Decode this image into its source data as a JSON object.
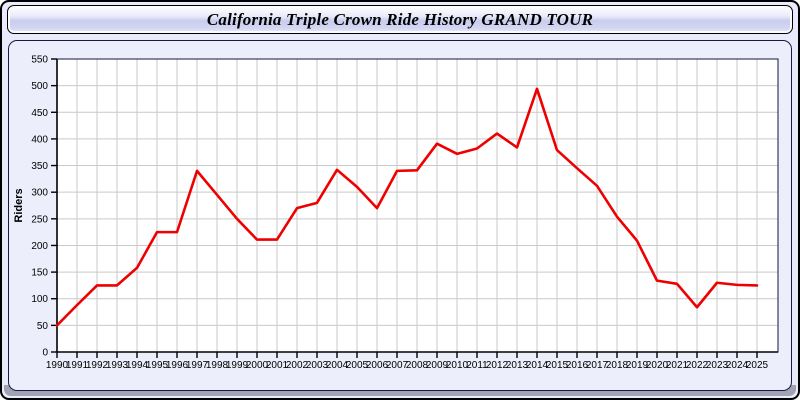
{
  "window": {
    "title": "California Triple Crown Ride History GRAND TOUR"
  },
  "colors": {
    "line_red": "#ee0000",
    "page_background": "#e9eafb",
    "panel_background": "#edeefc",
    "plot_background": "#ffffff",
    "grid_color": "#c9c9c9",
    "frame_color": "#16163c",
    "axis_color": "#000000",
    "banner_gradient_top": "#ffffff",
    "banner_gradient_mid": "#c9ccec",
    "bottom_strip": "#9fa3b3"
  },
  "chart_data": {
    "type": "line",
    "title": "California Triple Crown Ride History GRAND TOUR",
    "xlabel": "",
    "ylabel": "Riders",
    "ylim": [
      0,
      550
    ],
    "ytick_step": 50,
    "yticks": [
      0,
      50,
      100,
      150,
      200,
      250,
      300,
      350,
      400,
      450,
      500,
      550
    ],
    "grid": true,
    "legend": "none",
    "x": [
      1990,
      1991,
      1992,
      1993,
      1994,
      1995,
      1996,
      1997,
      1998,
      1999,
      2000,
      2001,
      2002,
      2003,
      2004,
      2005,
      2006,
      2007,
      2008,
      2009,
      2010,
      2011,
      2012,
      2013,
      2014,
      2015,
      2016,
      2017,
      2018,
      2019,
      2020,
      2021,
      2022,
      2023,
      2024,
      2025
    ],
    "series": [
      {
        "name": "Riders",
        "color": "#ee0000",
        "values": [
          50,
          88,
          125,
          125,
          158,
          225,
          225,
          340,
          295,
          250,
          211,
          211,
          270,
          280,
          342,
          310,
          270,
          340,
          341,
          391,
          372,
          382,
          410,
          384,
          494,
          379,
          345,
          312,
          254,
          209,
          134,
          128,
          84,
          130,
          126,
          125
        ]
      }
    ]
  }
}
